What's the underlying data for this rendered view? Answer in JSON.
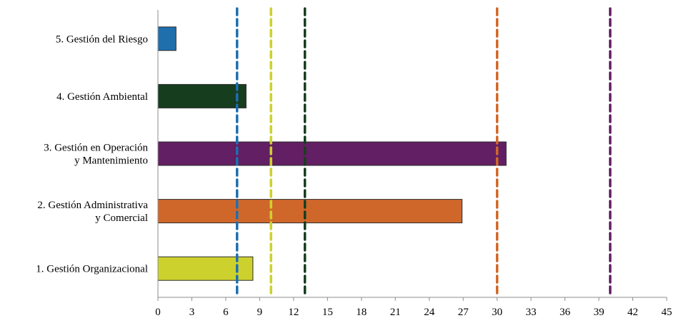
{
  "chart_data": {
    "type": "bar",
    "orientation": "horizontal",
    "title": "",
    "xlabel": "",
    "ylabel": "",
    "xlim": [
      0,
      45
    ],
    "x_ticks": [
      "0",
      "3",
      "6",
      "9",
      "12",
      "15",
      "18",
      "21",
      "24",
      "27",
      "30",
      "33",
      "36",
      "39",
      "42",
      "45"
    ],
    "grid": false,
    "categories": [
      {
        "lines": [
          "5. Gestión del Riesgo"
        ],
        "value": 1.6,
        "color": "#1f6fad"
      },
      {
        "lines": [
          "4. Gestión Ambiental"
        ],
        "value": 7.8,
        "color": "#173d1f"
      },
      {
        "lines": [
          "3. Gestión en Operación",
          "y Mantenimiento"
        ],
        "value": 30.8,
        "color": "#631f63"
      },
      {
        "lines": [
          "2. Gestión Administrativa",
          "y Comercial"
        ],
        "value": 26.9,
        "color": "#d0672a"
      },
      {
        "lines": [
          "1. Gestión Organizacional"
        ],
        "value": 8.4,
        "color": "#cdd12e"
      }
    ],
    "reference_lines": [
      {
        "value": 7,
        "color": "#1f6fad"
      },
      {
        "value": 10,
        "color": "#cdd12e"
      },
      {
        "value": 13,
        "color": "#173d1f"
      },
      {
        "value": 30,
        "color": "#d0672a"
      },
      {
        "value": 40,
        "color": "#631f63"
      }
    ]
  }
}
